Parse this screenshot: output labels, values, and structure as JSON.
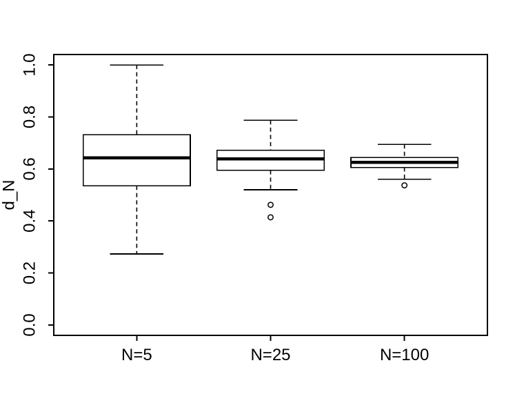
{
  "figure": {
    "background_color": "#ffffff",
    "line_color": "#000000",
    "text_color": "#000000"
  },
  "chart_data": {
    "type": "boxplot",
    "title": "",
    "xlabel": "",
    "ylabel": "d_N",
    "categories": [
      "N=5",
      "N=25",
      "N=100"
    ],
    "y_ticks": [
      0.0,
      0.2,
      0.4,
      0.6,
      0.8,
      1.0
    ],
    "y_tick_labels": [
      "0.0",
      "0.2",
      "0.4",
      "0.6",
      "0.8",
      "1.0"
    ],
    "ylim": [
      0.0,
      1.0
    ],
    "axis_expansion": 0.04,
    "grid": false,
    "legend": null,
    "series": [
      {
        "name": "N=5",
        "whisker_low": 0.273,
        "q1": 0.535,
        "median": 0.643,
        "q3": 0.732,
        "whisker_high": 1.0,
        "outliers": []
      },
      {
        "name": "N=25",
        "whisker_low": 0.52,
        "q1": 0.595,
        "median": 0.638,
        "q3": 0.672,
        "whisker_high": 0.787,
        "outliers": [
          0.462,
          0.414
        ]
      },
      {
        "name": "N=100",
        "whisker_low": 0.56,
        "q1": 0.606,
        "median": 0.626,
        "q3": 0.644,
        "whisker_high": 0.694,
        "outliers": [
          0.537
        ]
      }
    ]
  }
}
